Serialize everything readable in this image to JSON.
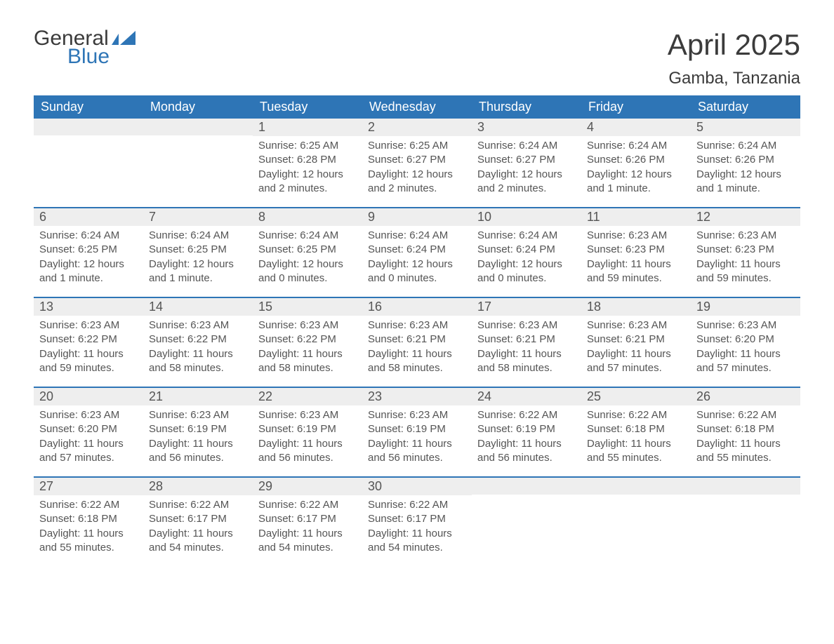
{
  "brand": {
    "text_general": "General",
    "text_blue": "Blue",
    "flag_color": "#2e75b6",
    "text_color_dark": "#3b3b3b"
  },
  "title": "April 2025",
  "location": "Gamba, Tanzania",
  "colors": {
    "header_bg": "#2e75b6",
    "header_fg": "#ffffff",
    "daynum_bg": "#eeeeee",
    "body_fg": "#555555",
    "week_border": "#2e75b6",
    "page_bg": "#ffffff"
  },
  "fonts": {
    "title_size_pt": 32,
    "subtitle_size_pt": 18,
    "dow_size_pt": 14,
    "daynum_size_pt": 14,
    "body_size_pt": 11
  },
  "days_of_week": [
    "Sunday",
    "Monday",
    "Tuesday",
    "Wednesday",
    "Thursday",
    "Friday",
    "Saturday"
  ],
  "weeks": [
    [
      {
        "num": "",
        "sunrise": "",
        "sunset": "",
        "daylight": ""
      },
      {
        "num": "",
        "sunrise": "",
        "sunset": "",
        "daylight": ""
      },
      {
        "num": "1",
        "sunrise": "Sunrise: 6:25 AM",
        "sunset": "Sunset: 6:28 PM",
        "daylight": "Daylight: 12 hours and 2 minutes."
      },
      {
        "num": "2",
        "sunrise": "Sunrise: 6:25 AM",
        "sunset": "Sunset: 6:27 PM",
        "daylight": "Daylight: 12 hours and 2 minutes."
      },
      {
        "num": "3",
        "sunrise": "Sunrise: 6:24 AM",
        "sunset": "Sunset: 6:27 PM",
        "daylight": "Daylight: 12 hours and 2 minutes."
      },
      {
        "num": "4",
        "sunrise": "Sunrise: 6:24 AM",
        "sunset": "Sunset: 6:26 PM",
        "daylight": "Daylight: 12 hours and 1 minute."
      },
      {
        "num": "5",
        "sunrise": "Sunrise: 6:24 AM",
        "sunset": "Sunset: 6:26 PM",
        "daylight": "Daylight: 12 hours and 1 minute."
      }
    ],
    [
      {
        "num": "6",
        "sunrise": "Sunrise: 6:24 AM",
        "sunset": "Sunset: 6:25 PM",
        "daylight": "Daylight: 12 hours and 1 minute."
      },
      {
        "num": "7",
        "sunrise": "Sunrise: 6:24 AM",
        "sunset": "Sunset: 6:25 PM",
        "daylight": "Daylight: 12 hours and 1 minute."
      },
      {
        "num": "8",
        "sunrise": "Sunrise: 6:24 AM",
        "sunset": "Sunset: 6:25 PM",
        "daylight": "Daylight: 12 hours and 0 minutes."
      },
      {
        "num": "9",
        "sunrise": "Sunrise: 6:24 AM",
        "sunset": "Sunset: 6:24 PM",
        "daylight": "Daylight: 12 hours and 0 minutes."
      },
      {
        "num": "10",
        "sunrise": "Sunrise: 6:24 AM",
        "sunset": "Sunset: 6:24 PM",
        "daylight": "Daylight: 12 hours and 0 minutes."
      },
      {
        "num": "11",
        "sunrise": "Sunrise: 6:23 AM",
        "sunset": "Sunset: 6:23 PM",
        "daylight": "Daylight: 11 hours and 59 minutes."
      },
      {
        "num": "12",
        "sunrise": "Sunrise: 6:23 AM",
        "sunset": "Sunset: 6:23 PM",
        "daylight": "Daylight: 11 hours and 59 minutes."
      }
    ],
    [
      {
        "num": "13",
        "sunrise": "Sunrise: 6:23 AM",
        "sunset": "Sunset: 6:22 PM",
        "daylight": "Daylight: 11 hours and 59 minutes."
      },
      {
        "num": "14",
        "sunrise": "Sunrise: 6:23 AM",
        "sunset": "Sunset: 6:22 PM",
        "daylight": "Daylight: 11 hours and 58 minutes."
      },
      {
        "num": "15",
        "sunrise": "Sunrise: 6:23 AM",
        "sunset": "Sunset: 6:22 PM",
        "daylight": "Daylight: 11 hours and 58 minutes."
      },
      {
        "num": "16",
        "sunrise": "Sunrise: 6:23 AM",
        "sunset": "Sunset: 6:21 PM",
        "daylight": "Daylight: 11 hours and 58 minutes."
      },
      {
        "num": "17",
        "sunrise": "Sunrise: 6:23 AM",
        "sunset": "Sunset: 6:21 PM",
        "daylight": "Daylight: 11 hours and 58 minutes."
      },
      {
        "num": "18",
        "sunrise": "Sunrise: 6:23 AM",
        "sunset": "Sunset: 6:21 PM",
        "daylight": "Daylight: 11 hours and 57 minutes."
      },
      {
        "num": "19",
        "sunrise": "Sunrise: 6:23 AM",
        "sunset": "Sunset: 6:20 PM",
        "daylight": "Daylight: 11 hours and 57 minutes."
      }
    ],
    [
      {
        "num": "20",
        "sunrise": "Sunrise: 6:23 AM",
        "sunset": "Sunset: 6:20 PM",
        "daylight": "Daylight: 11 hours and 57 minutes."
      },
      {
        "num": "21",
        "sunrise": "Sunrise: 6:23 AM",
        "sunset": "Sunset: 6:19 PM",
        "daylight": "Daylight: 11 hours and 56 minutes."
      },
      {
        "num": "22",
        "sunrise": "Sunrise: 6:23 AM",
        "sunset": "Sunset: 6:19 PM",
        "daylight": "Daylight: 11 hours and 56 minutes."
      },
      {
        "num": "23",
        "sunrise": "Sunrise: 6:23 AM",
        "sunset": "Sunset: 6:19 PM",
        "daylight": "Daylight: 11 hours and 56 minutes."
      },
      {
        "num": "24",
        "sunrise": "Sunrise: 6:22 AM",
        "sunset": "Sunset: 6:19 PM",
        "daylight": "Daylight: 11 hours and 56 minutes."
      },
      {
        "num": "25",
        "sunrise": "Sunrise: 6:22 AM",
        "sunset": "Sunset: 6:18 PM",
        "daylight": "Daylight: 11 hours and 55 minutes."
      },
      {
        "num": "26",
        "sunrise": "Sunrise: 6:22 AM",
        "sunset": "Sunset: 6:18 PM",
        "daylight": "Daylight: 11 hours and 55 minutes."
      }
    ],
    [
      {
        "num": "27",
        "sunrise": "Sunrise: 6:22 AM",
        "sunset": "Sunset: 6:18 PM",
        "daylight": "Daylight: 11 hours and 55 minutes."
      },
      {
        "num": "28",
        "sunrise": "Sunrise: 6:22 AM",
        "sunset": "Sunset: 6:17 PM",
        "daylight": "Daylight: 11 hours and 54 minutes."
      },
      {
        "num": "29",
        "sunrise": "Sunrise: 6:22 AM",
        "sunset": "Sunset: 6:17 PM",
        "daylight": "Daylight: 11 hours and 54 minutes."
      },
      {
        "num": "30",
        "sunrise": "Sunrise: 6:22 AM",
        "sunset": "Sunset: 6:17 PM",
        "daylight": "Daylight: 11 hours and 54 minutes."
      },
      {
        "num": "",
        "sunrise": "",
        "sunset": "",
        "daylight": ""
      },
      {
        "num": "",
        "sunrise": "",
        "sunset": "",
        "daylight": ""
      },
      {
        "num": "",
        "sunrise": "",
        "sunset": "",
        "daylight": ""
      }
    ]
  ]
}
